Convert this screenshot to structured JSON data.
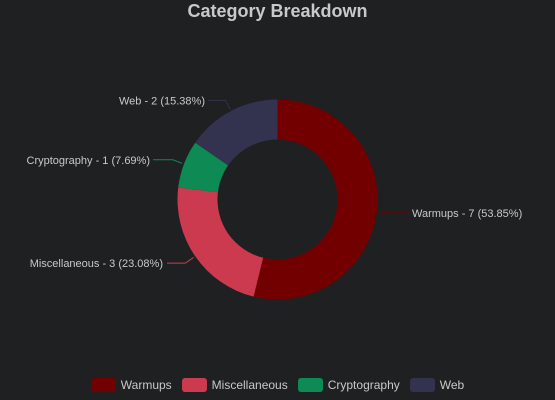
{
  "chart_data": {
    "type": "pie",
    "variant": "doughnut",
    "title": "Category Breakdown",
    "slices": [
      {
        "name": "Warmups",
        "value": 7,
        "percent": "53.85%",
        "label": "Warmups - 7 (53.85%)",
        "color": "#720000"
      },
      {
        "name": "Miscellaneous",
        "value": 3,
        "percent": "23.08%",
        "label": "Miscellaneous - 3 (23.08%)",
        "color": "#cc3a50"
      },
      {
        "name": "Cryptography",
        "value": 1,
        "percent": "7.69%",
        "label": "Cryptography - 1 (7.69%)",
        "color": "#0e8a55"
      },
      {
        "name": "Web",
        "value": 2,
        "percent": "15.38%",
        "label": "Web - 2 (15.38%)",
        "color": "#33334f"
      }
    ],
    "legend_position": "bottom"
  }
}
